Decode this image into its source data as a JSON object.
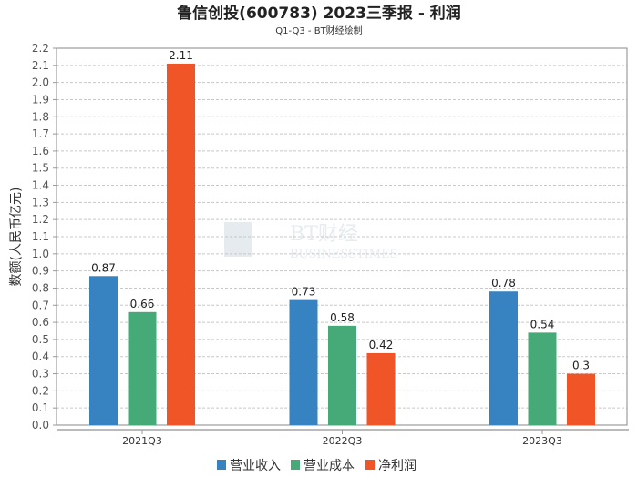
{
  "chart_data": {
    "type": "bar",
    "title": "鲁信创投(600783) 2023三季报 - 利润",
    "subtitle": "Q1-Q3 - BT财经绘制",
    "xlabel": "",
    "ylabel": "数额(人民币亿元)",
    "ylim": [
      0,
      2.2
    ],
    "ystep": 0.1,
    "grid": true,
    "legend_position": "bottom",
    "categories": [
      "2021Q3",
      "2022Q3",
      "2023Q3"
    ],
    "series": [
      {
        "name": "营业收入",
        "color": "#3782c0",
        "values": [
          0.87,
          0.73,
          0.78
        ]
      },
      {
        "name": "营业成本",
        "color": "#46aa78",
        "values": [
          0.66,
          0.58,
          0.54
        ]
      },
      {
        "name": "净利润",
        "color": "#f05528",
        "values": [
          2.11,
          0.42,
          0.3
        ]
      }
    ],
    "watermark": "BT财经 BUSINESSTIMES"
  }
}
